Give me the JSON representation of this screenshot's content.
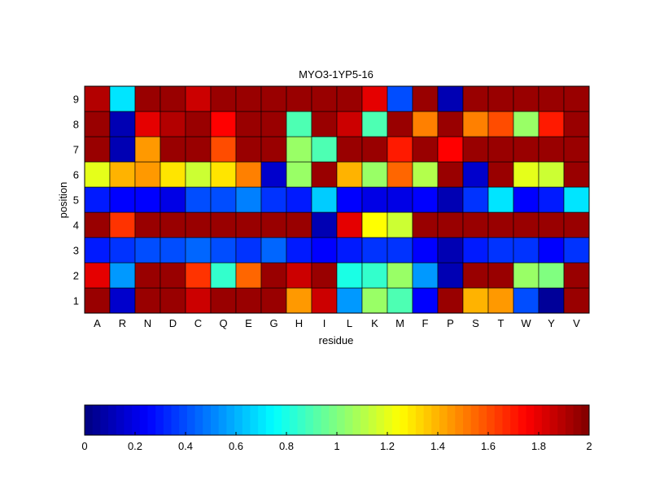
{
  "chart_data": {
    "type": "heatmap",
    "title": "MYO3-1YP5-16",
    "xlabel": "residue",
    "ylabel": "position",
    "x": [
      "A",
      "R",
      "N",
      "D",
      "C",
      "Q",
      "E",
      "G",
      "H",
      "I",
      "L",
      "K",
      "M",
      "F",
      "P",
      "S",
      "T",
      "W",
      "Y",
      "V"
    ],
    "y": [
      "1",
      "2",
      "3",
      "4",
      "5",
      "6",
      "7",
      "8",
      "9"
    ],
    "values": [
      [
        1.95,
        0.15,
        1.95,
        1.95,
        1.85,
        1.95,
        1.95,
        1.95,
        1.45,
        1.85,
        0.55,
        1.05,
        0.9,
        0.25,
        1.95,
        1.4,
        1.45,
        0.4,
        0.05,
        1.95
      ],
      [
        1.8,
        0.55,
        1.95,
        1.95,
        1.65,
        0.85,
        1.55,
        1.95,
        1.85,
        1.95,
        0.8,
        0.85,
        1.05,
        0.55,
        0.1,
        1.95,
        1.95,
        1.05,
        1.0,
        1.95
      ],
      [
        0.3,
        0.35,
        0.4,
        0.4,
        0.45,
        0.4,
        0.35,
        0.45,
        0.3,
        0.25,
        0.3,
        0.35,
        0.35,
        0.25,
        0.1,
        0.3,
        0.35,
        0.35,
        0.25,
        0.35
      ],
      [
        1.95,
        1.65,
        1.95,
        1.95,
        1.95,
        1.95,
        1.95,
        1.95,
        1.95,
        0.1,
        1.8,
        1.25,
        1.15,
        1.95,
        1.95,
        1.95,
        1.95,
        1.95,
        1.95,
        1.95
      ],
      [
        0.3,
        0.25,
        0.25,
        0.2,
        0.4,
        0.4,
        0.5,
        0.35,
        0.3,
        0.65,
        0.25,
        0.2,
        0.2,
        0.25,
        0.1,
        0.35,
        0.7,
        0.25,
        0.3,
        0.7
      ],
      [
        1.2,
        1.4,
        1.45,
        1.3,
        1.15,
        1.3,
        1.5,
        0.15,
        1.05,
        1.95,
        1.4,
        1.05,
        1.55,
        1.1,
        1.95,
        0.15,
        1.95,
        1.2,
        1.15,
        1.95
      ],
      [
        1.95,
        0.1,
        1.45,
        1.95,
        1.95,
        1.6,
        1.95,
        1.95,
        1.05,
        0.9,
        1.95,
        1.95,
        1.7,
        1.95,
        1.75,
        1.95,
        1.95,
        1.95,
        1.95,
        1.95
      ],
      [
        1.95,
        0.1,
        1.8,
        1.9,
        1.95,
        1.75,
        1.95,
        1.95,
        0.9,
        1.95,
        1.85,
        0.9,
        1.95,
        1.5,
        1.95,
        1.5,
        1.6,
        1.05,
        1.7,
        1.95
      ],
      [
        1.9,
        0.7,
        1.95,
        1.95,
        1.85,
        1.95,
        1.95,
        1.95,
        1.95,
        1.95,
        1.95,
        1.8,
        0.4,
        1.95,
        0.1,
        1.95,
        1.95,
        1.95,
        1.95,
        1.95
      ]
    ],
    "zlim": [
      0,
      2
    ],
    "colormap": "jet",
    "colorbar": {
      "position": "bottom",
      "ticks": [
        "0",
        "0.2",
        "0.4",
        "0.6",
        "0.8",
        "1",
        "1.2",
        "1.4",
        "1.6",
        "1.8",
        "2"
      ],
      "tick_values": [
        0,
        0.2,
        0.4,
        0.6,
        0.8,
        1,
        1.2,
        1.4,
        1.6,
        1.8,
        2
      ]
    },
    "grid": true
  }
}
